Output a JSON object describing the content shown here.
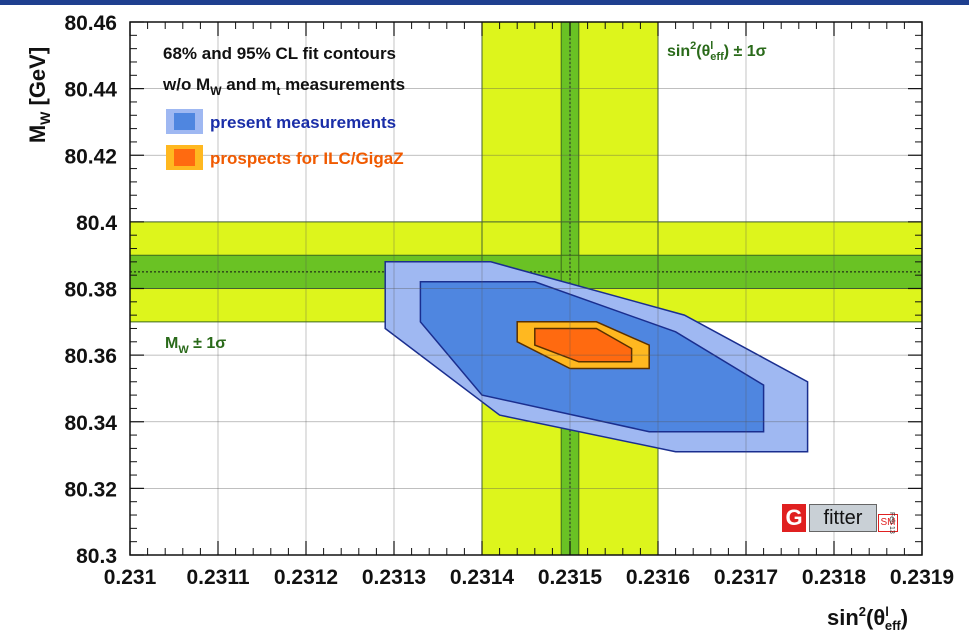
{
  "chart_data": {
    "type": "contour",
    "xlabel_base": "sin",
    "xlabel_sup": "2",
    "xlabel_theta": "(θ",
    "xlabel_theta_sup": "l",
    "xlabel_theta_sub": "eff",
    "xlabel_close": ")",
    "ylabel_base": "M",
    "ylabel_sub": "W",
    "ylabel_unit": " [GeV]",
    "xlim": [
      0.231,
      0.2319
    ],
    "ylim": [
      80.3,
      80.46
    ],
    "xticks": [
      "0.231",
      "0.2311",
      "0.2312",
      "0.2313",
      "0.2314",
      "0.2315",
      "0.2316",
      "0.2317",
      "0.2318",
      "0.2319"
    ],
    "yticks": [
      "80.3",
      "80.32",
      "80.34",
      "80.36",
      "80.38",
      "80.4",
      "80.42",
      "80.44",
      "80.46"
    ],
    "xtick_values": [
      0.231,
      0.2311,
      0.2312,
      0.2313,
      0.2314,
      0.2315,
      0.2316,
      0.2317,
      0.2318,
      0.2319
    ],
    "ytick_values": [
      80.3,
      80.32,
      80.34,
      80.36,
      80.38,
      80.4,
      80.42,
      80.44,
      80.46
    ],
    "legend_title_line1": "68% and 95% CL fit contours",
    "legend_title_line2_a": "w/o M",
    "legend_title_line2_sub1": "W",
    "legend_title_line2_b": " and m",
    "legend_title_line2_sub2": "t",
    "legend_title_line2_c": " measurements",
    "series": [
      {
        "name": "present measurements",
        "color_95": "#9fb8f2",
        "color_68": "#4f86e0",
        "edge_color": "#1a2e8f",
        "label_color": "#1a2ea8",
        "contour_95": [
          [
            0.23129,
            80.388
          ],
          [
            0.23141,
            80.388
          ],
          [
            0.23163,
            80.372
          ],
          [
            0.23177,
            80.352
          ],
          [
            0.23177,
            80.331
          ],
          [
            0.23162,
            80.331
          ],
          [
            0.23142,
            80.342
          ],
          [
            0.23129,
            80.368
          ]
        ],
        "contour_68": [
          [
            0.23133,
            80.382
          ],
          [
            0.23146,
            80.382
          ],
          [
            0.23162,
            80.367
          ],
          [
            0.23172,
            80.351
          ],
          [
            0.23172,
            80.337
          ],
          [
            0.23159,
            80.337
          ],
          [
            0.2314,
            80.348
          ],
          [
            0.23133,
            80.37
          ]
        ]
      },
      {
        "name": "prospects for ILC/GigaZ",
        "color_95": "#ffb820",
        "color_68": "#ff6a10",
        "edge_color": "#5a3000",
        "label_color": "#f05a00",
        "contour_95": [
          [
            0.23144,
            80.37
          ],
          [
            0.23153,
            80.37
          ],
          [
            0.23159,
            80.363
          ],
          [
            0.23159,
            80.356
          ],
          [
            0.2315,
            80.356
          ],
          [
            0.23144,
            80.364
          ]
        ],
        "contour_68": [
          [
            0.23146,
            80.368
          ],
          [
            0.23153,
            80.368
          ],
          [
            0.23157,
            80.362
          ],
          [
            0.23157,
            80.358
          ],
          [
            0.23151,
            80.358
          ],
          [
            0.23146,
            80.363
          ]
        ]
      }
    ],
    "bands": {
      "x_measurement": {
        "center": 0.2315,
        "outer": [
          0.2314,
          0.2316
        ],
        "inner": [
          0.23149,
          0.23151
        ],
        "label_a": "sin",
        "label_sup": "2",
        "label_b": "(θ",
        "label_sup2": "l",
        "label_sub": "eff",
        "label_c": ") ± 1σ"
      },
      "y_measurement": {
        "center": 80.385,
        "outer": [
          80.37,
          80.4
        ],
        "inner": [
          80.38,
          80.39
        ],
        "label_a": "M",
        "label_sub": "W",
        "label_b": " ± 1σ"
      },
      "outer_color": "#ddf51c",
      "inner_color": "#6ac224",
      "label_color": "#2a6a1a"
    }
  },
  "logo": {
    "g": "G",
    "fitter": "fitter",
    "sm": "SM",
    "date": "Feb 13"
  }
}
